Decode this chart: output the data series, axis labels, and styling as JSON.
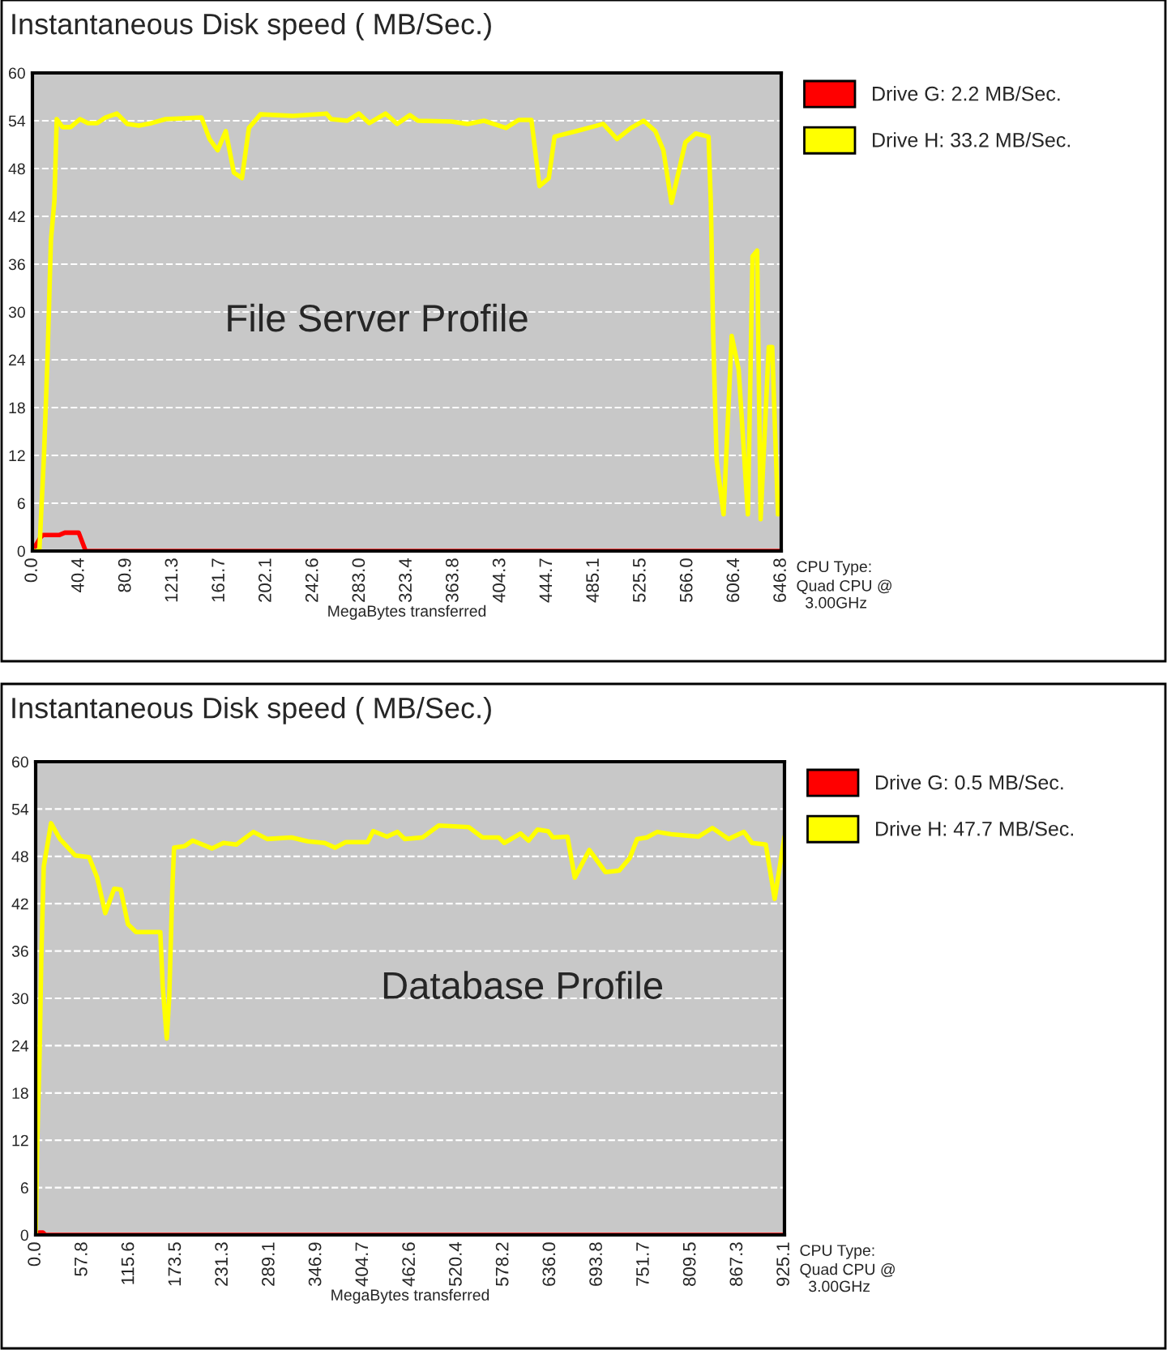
{
  "chart_data": [
    {
      "type": "line",
      "title": "Instantaneous Disk speed ( MB/Sec.)",
      "xlabel": "MegaBytes transferred",
      "annotations": [
        "File Server Profile",
        "CPU Type:",
        "Quad CPU @\n  3.00GHz"
      ],
      "xlim": [
        0,
        646.8
      ],
      "ylim": [
        0,
        60
      ],
      "xticks": [
        {
          "value": 0,
          "label": "0.0"
        },
        40.4,
        80.9,
        121.3,
        161.7,
        202.1,
        242.6,
        {
          "value": 283,
          "label": "283.0"
        },
        323.4,
        363.8,
        404.3,
        444.7,
        485.1,
        525.5,
        {
          "value": 566,
          "label": "566.0"
        },
        606.4,
        646.8
      ],
      "yticks": [
        0,
        6,
        12,
        18,
        24,
        30,
        36,
        42,
        48,
        54,
        60
      ],
      "grid": "y",
      "legend": "right",
      "marker": "none",
      "line_style": "solid",
      "series": [
        {
          "name": "Drive G: 2.2 MB/Sec.",
          "color": "#ff0000",
          "x": [
            0,
            7,
            9,
            23,
            28,
            40,
            46,
            646.8
          ],
          "values": [
            0,
            1.7,
            2,
            2,
            2.3,
            2.3,
            0,
            0
          ]
        },
        {
          "name": "Drive H: 33.2 MB/Sec.",
          "color": "#ffff00",
          "x": [
            0,
            6,
            10,
            13,
            16,
            19,
            21,
            26,
            33,
            41,
            48,
            56,
            63,
            73,
            82,
            92,
            103,
            115,
            146,
            153,
            160,
            167,
            174,
            181,
            187,
            197,
            225,
            254,
            258,
            272,
            282,
            291,
            305,
            315,
            326,
            333,
            362,
            376,
            390,
            409,
            420,
            431,
            438,
            446,
            451,
            470,
            488,
            493,
            505,
            517,
            528,
            538,
            545,
            552,
            564,
            573,
            584,
            586,
            588,
            591,
            597,
            604,
            610,
            618,
            622,
            626,
            629,
            636,
            639,
            644
          ],
          "values": [
            0,
            0,
            12,
            24,
            39,
            44,
            54.2,
            53.2,
            53.2,
            54.2,
            53.7,
            53.7,
            54.4,
            54.9,
            53.6,
            53.4,
            53.7,
            54.2,
            54.4,
            51.7,
            50.3,
            52.7,
            47.5,
            46.8,
            53.1,
            54.8,
            54.6,
            54.9,
            54.2,
            54,
            54.9,
            53.7,
            54.9,
            53.6,
            54.7,
            54,
            53.9,
            53.6,
            54,
            53.1,
            54.1,
            54.1,
            45.8,
            46.8,
            52,
            52.7,
            53.4,
            53.6,
            51.7,
            53.1,
            54,
            52.7,
            50.3,
            43.7,
            51.3,
            52.4,
            52,
            43.7,
            27.3,
            11.3,
            4.6,
            27,
            22.8,
            4.6,
            37,
            37.7,
            4,
            25.6,
            25.6,
            4.6
          ]
        }
      ]
    },
    {
      "type": "line",
      "title": "Instantaneous Disk speed ( MB/Sec.)",
      "xlabel": "MegaBytes transferred",
      "annotations": [
        "Database Profile",
        "CPU Type:",
        "Quad CPU @\n  3.00GHz"
      ],
      "xlim": [
        0,
        925.1
      ],
      "ylim": [
        0,
        60
      ],
      "xticks": [
        {
          "value": 0,
          "label": "0.0"
        },
        57.8,
        115.6,
        173.5,
        231.3,
        289.1,
        346.9,
        404.7,
        462.6,
        520.4,
        578.2,
        {
          "value": 636,
          "label": "636.0"
        },
        693.8,
        751.7,
        809.5,
        867.3,
        925.1
      ],
      "yticks": [
        0,
        6,
        12,
        18,
        24,
        30,
        36,
        42,
        48,
        54,
        60
      ],
      "grid": "y",
      "legend": "right",
      "marker": "none",
      "line_style": "solid",
      "series": [
        {
          "name": "Drive G: 0.5 MB/Sec.",
          "color": "#ff0000",
          "x": [
            0,
            4,
            9,
            12,
            925.1
          ],
          "values": [
            0,
            0.3,
            0.3,
            0,
            0
          ]
        },
        {
          "name": "Drive H: 47.7 MB/Sec.",
          "color": "#ffff00",
          "x": [
            0,
            2,
            5,
            7,
            10,
            19,
            30,
            49,
            66,
            76,
            86,
            97,
            105,
            114,
            124,
            154,
            157,
            162,
            165,
            169,
            171,
            184,
            194,
            218,
            232,
            248,
            269,
            286,
            316,
            336,
            357,
            370,
            383,
            410,
            417,
            434,
            447,
            456,
            478,
            498,
            535,
            552,
            572,
            579,
            599,
            609,
            620,
            633,
            639,
            657,
            666,
            684,
            704,
            721,
            734,
            743,
            755,
            768,
            785,
            819,
            836,
            856,
            875,
            885,
            902,
            913,
            925.1
          ],
          "values": [
            0,
            11.8,
            23.5,
            35.3,
            46.7,
            52.2,
            50.2,
            48.1,
            47.9,
            45.3,
            40.8,
            43.9,
            43.8,
            39.4,
            38.4,
            38.4,
            31.5,
            24.9,
            30.1,
            44.3,
            49.1,
            49.3,
            50,
            49,
            49.7,
            49.5,
            51.1,
            50.2,
            50.4,
            49.9,
            49.7,
            49.1,
            49.8,
            49.8,
            51.2,
            50.5,
            51.1,
            50.2,
            50.4,
            51.9,
            51.7,
            50.4,
            50.4,
            49.7,
            50.9,
            50,
            51.4,
            51.2,
            50.4,
            50.5,
            45.3,
            48.8,
            46,
            46.2,
            47.8,
            50.2,
            50.4,
            51.1,
            50.8,
            50.5,
            51.6,
            50.2,
            51.1,
            49.7,
            49.5,
            42.6,
            50.5
          ]
        }
      ]
    }
  ]
}
